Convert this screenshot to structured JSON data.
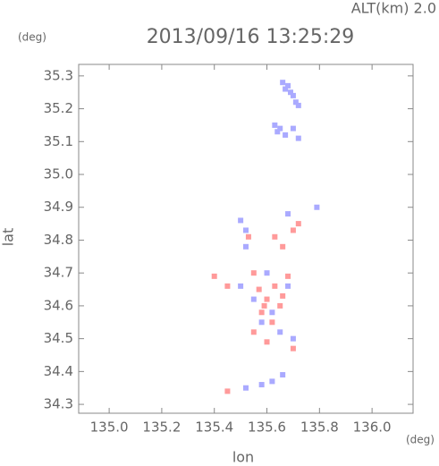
{
  "chart_data": {
    "type": "scatter",
    "title": "2013/09/16 13:25:29",
    "subtitle": "ALT(km) 2.0",
    "y_unit": "(deg)",
    "x_unit": "(deg)",
    "xlabel": "lon",
    "ylabel": "lat",
    "xlim": [
      134.884,
      136.156
    ],
    "ylim": [
      34.273,
      35.335
    ],
    "xticks": [
      {
        "value": 135.0,
        "label": "135.0"
      },
      135.2,
      135.4,
      135.6,
      135.8,
      {
        "value": 136.0,
        "label": "136.0"
      }
    ],
    "yticks": [
      34.3,
      34.4,
      34.5,
      34.6,
      34.7,
      34.8,
      34.9,
      {
        "value": 35.0,
        "label": "35.0"
      },
      35.1,
      35.2,
      35.3
    ],
    "series": [
      {
        "color": "#aaaaff",
        "x": [
          135.66,
          135.68,
          135.69,
          135.7,
          135.71,
          135.72,
          135.67,
          135.63,
          135.65,
          135.67,
          135.7,
          135.72,
          135.64,
          135.79,
          135.68,
          135.5,
          135.52,
          135.52,
          135.55,
          135.6,
          135.62,
          135.58,
          135.65,
          135.7,
          135.62,
          135.58,
          135.52,
          135.66,
          135.5,
          135.68
        ],
        "values": [
          35.28,
          35.27,
          35.25,
          35.24,
          35.22,
          35.21,
          35.26,
          35.15,
          35.14,
          35.12,
          35.14,
          35.11,
          35.13,
          34.9,
          34.88,
          34.86,
          34.83,
          34.78,
          34.62,
          34.7,
          34.58,
          34.55,
          34.52,
          34.5,
          34.37,
          34.36,
          34.35,
          34.39,
          34.66,
          34.66
        ]
      },
      {
        "color": "#ff9a9a",
        "x": [
          135.45,
          135.7,
          135.72,
          135.66,
          135.63,
          135.55,
          135.57,
          135.6,
          135.63,
          135.58,
          135.62,
          135.65,
          135.55,
          135.6,
          135.68,
          135.66,
          135.7,
          135.45,
          135.4,
          135.53,
          135.59
        ],
        "values": [
          34.34,
          34.83,
          34.85,
          34.78,
          34.81,
          34.7,
          34.65,
          34.62,
          34.66,
          34.58,
          34.55,
          34.6,
          34.52,
          34.49,
          34.69,
          34.63,
          34.47,
          34.66,
          34.69,
          34.81,
          34.6
        ]
      }
    ]
  }
}
